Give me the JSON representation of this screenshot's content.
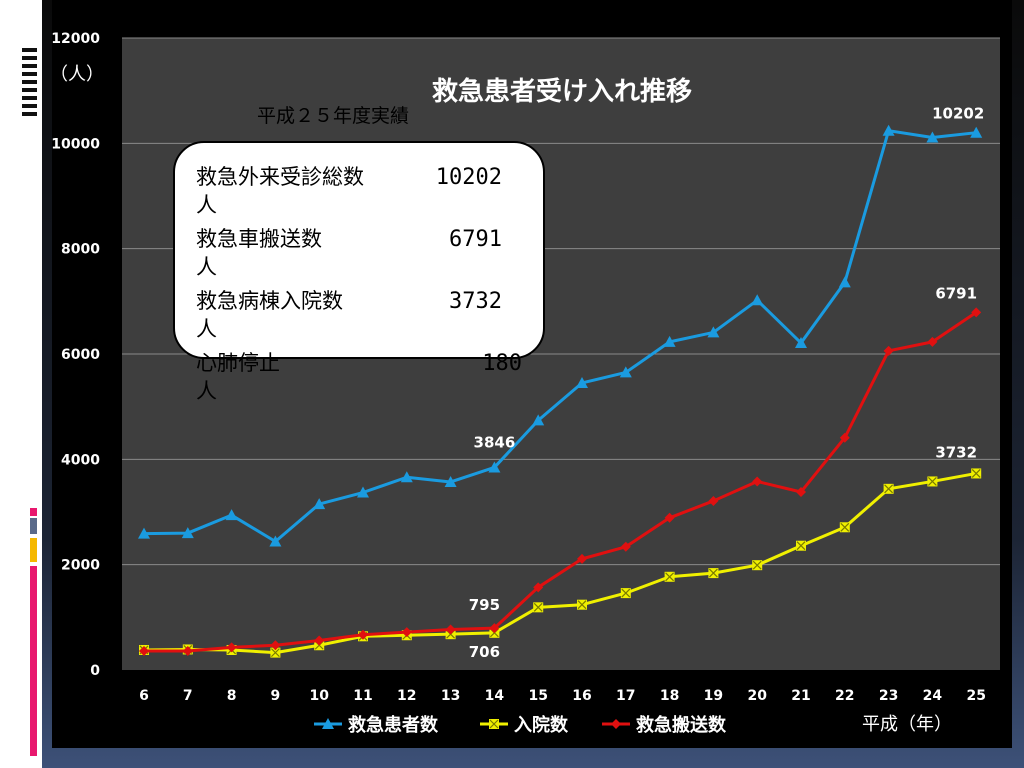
{
  "chart_data": {
    "type": "line",
    "title": "救急患者受け入れ推移",
    "subtitle": "平成２５年度実績",
    "ylabel": "（人）",
    "xlabel": "平成（年）",
    "ylim": [
      0,
      12000
    ],
    "yticks": [
      "0",
      "2000",
      "4000",
      "6000",
      "8000",
      "10000",
      "12000"
    ],
    "categories": [
      "6",
      "7",
      "8",
      "9",
      "10",
      "11",
      "12",
      "13",
      "14",
      "15",
      "16",
      "17",
      "18",
      "19",
      "20",
      "21",
      "22",
      "23",
      "24",
      "25"
    ],
    "grid": true,
    "legend_position": "bottom",
    "series": [
      {
        "name": "救急患者数",
        "color": "#1a9be0",
        "marker": "triangle",
        "values": [
          2590,
          2600,
          2940,
          2440,
          3150,
          3370,
          3660,
          3570,
          3846,
          4740,
          5450,
          5650,
          6230,
          6410,
          7020,
          6210,
          7360,
          10240,
          10110,
          10202
        ]
      },
      {
        "name": "入院数",
        "color": "#f0f000",
        "marker": "square",
        "values": [
          380,
          390,
          380,
          330,
          470,
          640,
          660,
          680,
          706,
          1190,
          1240,
          1460,
          1770,
          1840,
          1990,
          2360,
          2710,
          3440,
          3580,
          3732
        ]
      },
      {
        "name": "救急搬送数",
        "color": "#e01010",
        "marker": "diamond",
        "values": [
          360,
          360,
          430,
          470,
          560,
          670,
          720,
          770,
          795,
          1570,
          2110,
          2340,
          2890,
          3210,
          3580,
          3380,
          4410,
          6060,
          6230,
          6791
        ]
      }
    ],
    "annotations": [
      {
        "series": 0,
        "index": 8,
        "text": "3846"
      },
      {
        "series": 0,
        "index": 19,
        "text": "10202"
      },
      {
        "series": 2,
        "index": 8,
        "text": "795"
      },
      {
        "series": 2,
        "index": 19,
        "text": "6791"
      },
      {
        "series": 1,
        "index": 8,
        "text": "706"
      },
      {
        "series": 1,
        "index": 19,
        "text": "3732"
      }
    ]
  },
  "infobox": {
    "rows": [
      {
        "label": "救急外来受診総数",
        "value": "10202",
        "unit": "人"
      },
      {
        "label": "救急車搬送数",
        "value": "6791",
        "unit": "人"
      },
      {
        "label": "救急病棟入院数",
        "value": "3732",
        "unit": "人"
      },
      {
        "label": "心肺停止",
        "value": "180",
        "unit": "人"
      }
    ]
  }
}
